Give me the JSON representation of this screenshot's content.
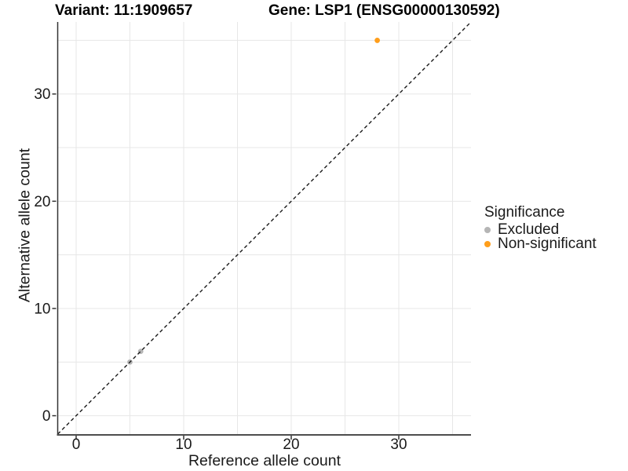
{
  "titles": {
    "variant": "Variant: 11:1909657",
    "gene": "Gene: LSP1 (ENSG00000130592)"
  },
  "chart_data": {
    "type": "scatter",
    "xlabel": "Reference allele count",
    "ylabel": "Alternative allele count",
    "xlim": [
      -1.715,
      36.715
    ],
    "ylim": [
      -1.715,
      36.715
    ],
    "x_ticks": [
      0,
      10,
      20,
      30
    ],
    "y_ticks": [
      0,
      10,
      20,
      30
    ],
    "gridlines": [
      0,
      5,
      10,
      15,
      20,
      25,
      30,
      35
    ],
    "grid": "on",
    "abline": {
      "slope": 1,
      "intercept": 0,
      "style": "dashed",
      "color": "#1a1a1a"
    },
    "series": [
      {
        "name": "Excluded",
        "color": "#b5b5b5",
        "points": [
          [
            5,
            5
          ],
          [
            6,
            6
          ]
        ]
      },
      {
        "name": "Non-significant",
        "color": "#ff9e1b",
        "points": [
          [
            28,
            35
          ]
        ]
      }
    ],
    "legend": {
      "title": "Significance",
      "position": "right"
    },
    "style": {
      "grid_color": "#e7e7e7",
      "axis_line_color": "#333333",
      "bottom_axis_color": "#4d4d4d",
      "tick_color": "#333333",
      "text_color": "#1a1a1a",
      "point_radius": 3.4,
      "background": "#ffffff"
    }
  }
}
